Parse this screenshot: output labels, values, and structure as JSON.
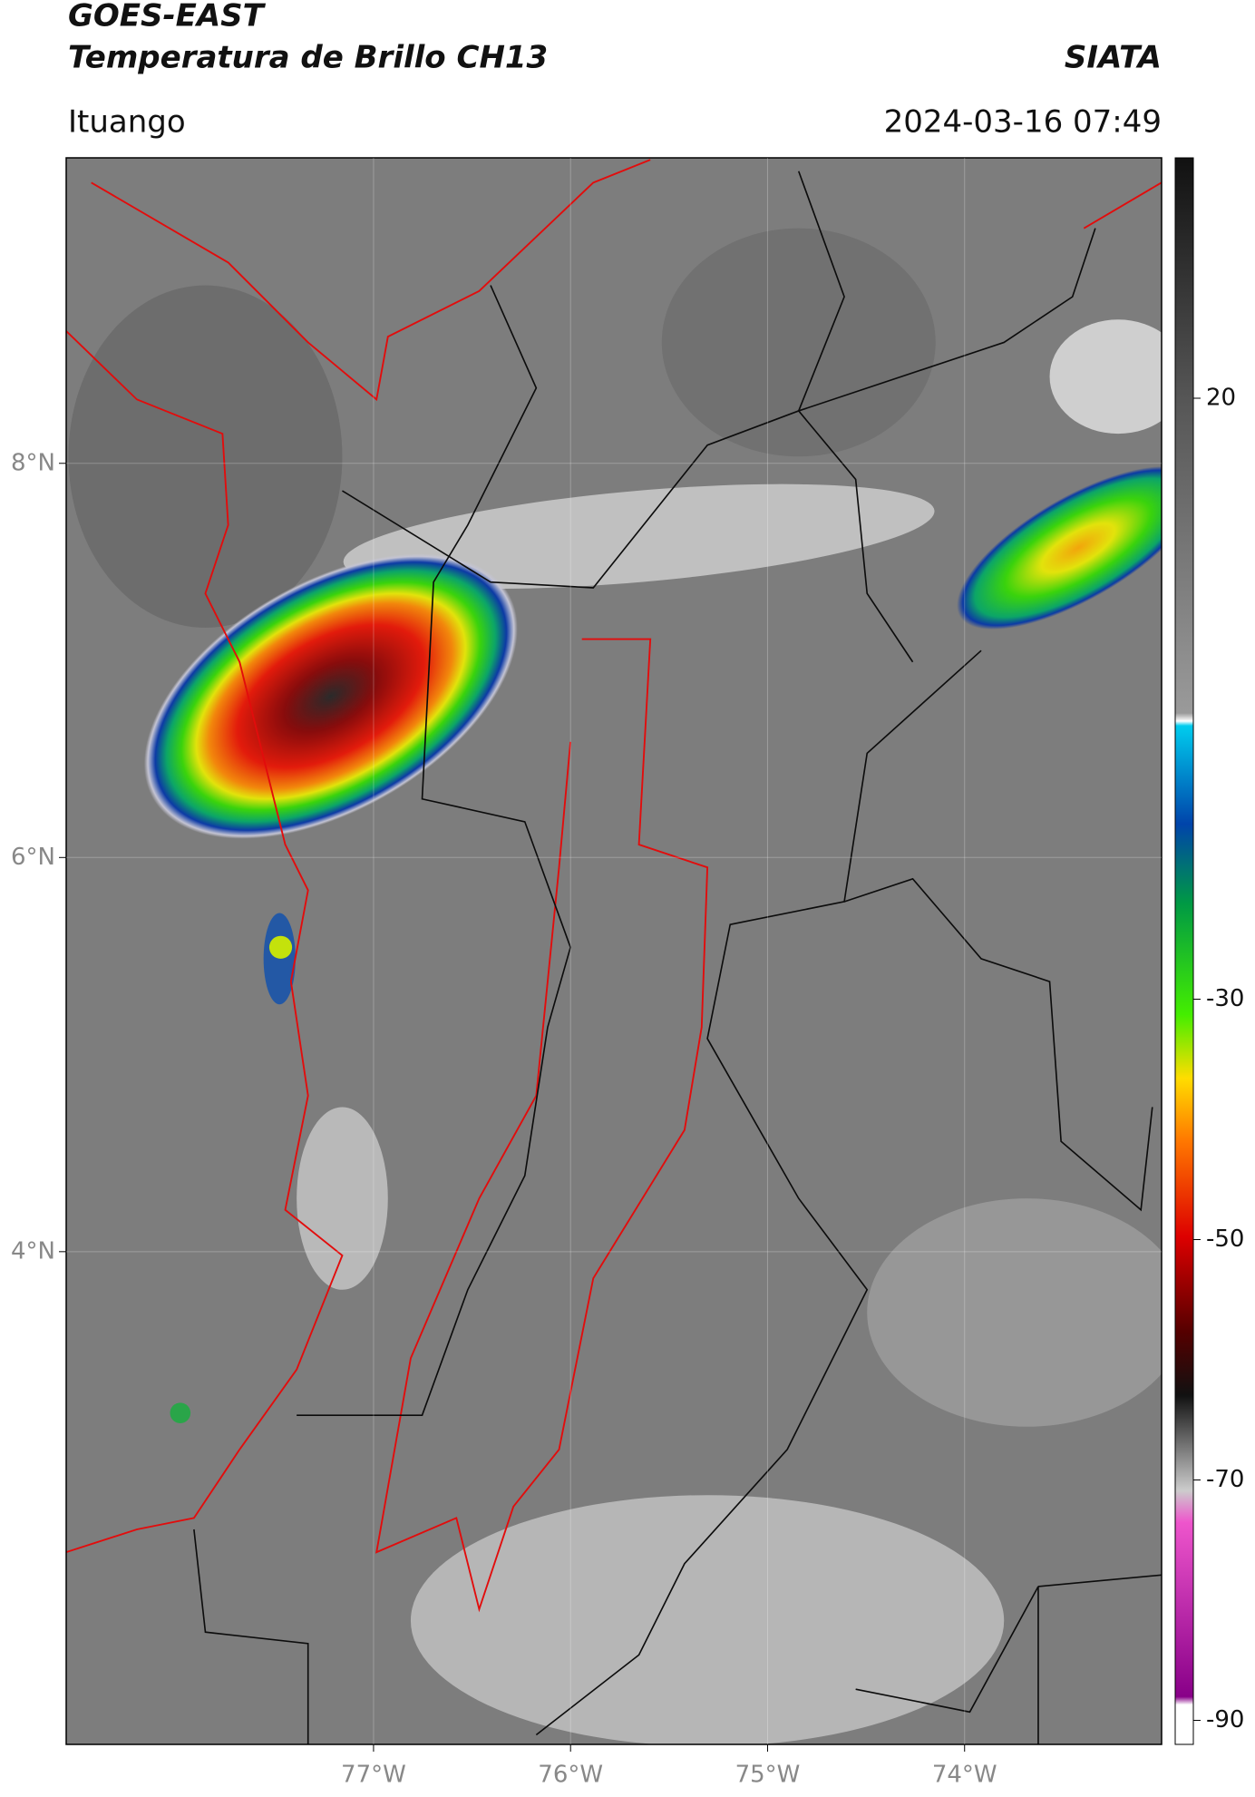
{
  "header": {
    "title": "GOES-EAST",
    "subtitle": "Temperatura de Brillo CH13",
    "source": "SIATA",
    "location": "Ituango",
    "datetime": "2024-03-16 07:49"
  },
  "map": {
    "xlim": [
      -78.56,
      -73.0
    ],
    "ylim": [
      1.5,
      9.55
    ],
    "xticks": [
      {
        "value": -77,
        "label": "77°W"
      },
      {
        "value": -76,
        "label": "76°W"
      },
      {
        "value": -75,
        "label": "75°W"
      },
      {
        "value": -74,
        "label": "74°W"
      }
    ],
    "yticks": [
      {
        "value": 8,
        "label": "8°N"
      },
      {
        "value": 6,
        "label": "6°N"
      },
      {
        "value": 4,
        "label": "4°N"
      }
    ],
    "grid": true
  },
  "colorbar": {
    "lim": [
      -92,
      40
    ],
    "ticks": [
      20,
      -30,
      -50,
      -70,
      -90
    ]
  }
}
